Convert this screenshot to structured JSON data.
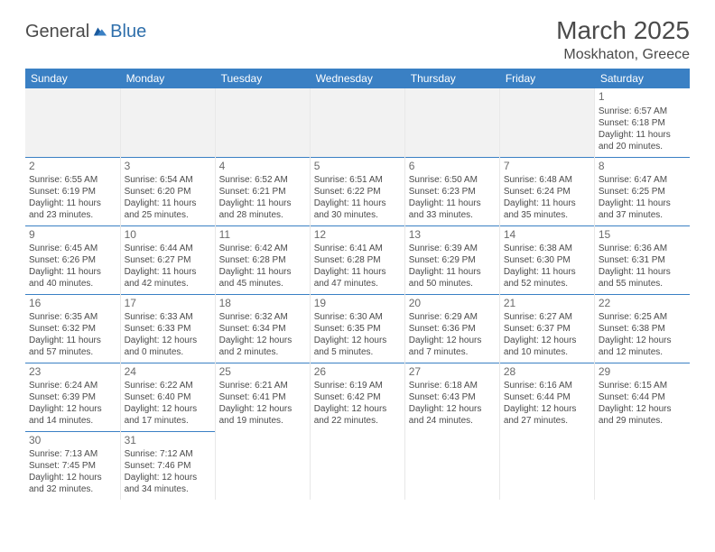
{
  "logo": {
    "part1": "General",
    "part2": "Blue"
  },
  "title": "March 2025",
  "location": "Moskhaton, Greece",
  "colors": {
    "header_bg": "#3a80c4",
    "header_text": "#ffffff",
    "border": "#3a80c4",
    "cell_border": "#e8e8e8",
    "text": "#4a4a4a",
    "daynum": "#6a6a6a",
    "empty_bg": "#f2f2f2"
  },
  "weekdays": [
    "Sunday",
    "Monday",
    "Tuesday",
    "Wednesday",
    "Thursday",
    "Friday",
    "Saturday"
  ],
  "weeks": [
    [
      null,
      null,
      null,
      null,
      null,
      null,
      {
        "d": "1",
        "sr": "Sunrise: 6:57 AM",
        "ss": "Sunset: 6:18 PM",
        "dl1": "Daylight: 11 hours",
        "dl2": "and 20 minutes."
      }
    ],
    [
      {
        "d": "2",
        "sr": "Sunrise: 6:55 AM",
        "ss": "Sunset: 6:19 PM",
        "dl1": "Daylight: 11 hours",
        "dl2": "and 23 minutes."
      },
      {
        "d": "3",
        "sr": "Sunrise: 6:54 AM",
        "ss": "Sunset: 6:20 PM",
        "dl1": "Daylight: 11 hours",
        "dl2": "and 25 minutes."
      },
      {
        "d": "4",
        "sr": "Sunrise: 6:52 AM",
        "ss": "Sunset: 6:21 PM",
        "dl1": "Daylight: 11 hours",
        "dl2": "and 28 minutes."
      },
      {
        "d": "5",
        "sr": "Sunrise: 6:51 AM",
        "ss": "Sunset: 6:22 PM",
        "dl1": "Daylight: 11 hours",
        "dl2": "and 30 minutes."
      },
      {
        "d": "6",
        "sr": "Sunrise: 6:50 AM",
        "ss": "Sunset: 6:23 PM",
        "dl1": "Daylight: 11 hours",
        "dl2": "and 33 minutes."
      },
      {
        "d": "7",
        "sr": "Sunrise: 6:48 AM",
        "ss": "Sunset: 6:24 PM",
        "dl1": "Daylight: 11 hours",
        "dl2": "and 35 minutes."
      },
      {
        "d": "8",
        "sr": "Sunrise: 6:47 AM",
        "ss": "Sunset: 6:25 PM",
        "dl1": "Daylight: 11 hours",
        "dl2": "and 37 minutes."
      }
    ],
    [
      {
        "d": "9",
        "sr": "Sunrise: 6:45 AM",
        "ss": "Sunset: 6:26 PM",
        "dl1": "Daylight: 11 hours",
        "dl2": "and 40 minutes."
      },
      {
        "d": "10",
        "sr": "Sunrise: 6:44 AM",
        "ss": "Sunset: 6:27 PM",
        "dl1": "Daylight: 11 hours",
        "dl2": "and 42 minutes."
      },
      {
        "d": "11",
        "sr": "Sunrise: 6:42 AM",
        "ss": "Sunset: 6:28 PM",
        "dl1": "Daylight: 11 hours",
        "dl2": "and 45 minutes."
      },
      {
        "d": "12",
        "sr": "Sunrise: 6:41 AM",
        "ss": "Sunset: 6:28 PM",
        "dl1": "Daylight: 11 hours",
        "dl2": "and 47 minutes."
      },
      {
        "d": "13",
        "sr": "Sunrise: 6:39 AM",
        "ss": "Sunset: 6:29 PM",
        "dl1": "Daylight: 11 hours",
        "dl2": "and 50 minutes."
      },
      {
        "d": "14",
        "sr": "Sunrise: 6:38 AM",
        "ss": "Sunset: 6:30 PM",
        "dl1": "Daylight: 11 hours",
        "dl2": "and 52 minutes."
      },
      {
        "d": "15",
        "sr": "Sunrise: 6:36 AM",
        "ss": "Sunset: 6:31 PM",
        "dl1": "Daylight: 11 hours",
        "dl2": "and 55 minutes."
      }
    ],
    [
      {
        "d": "16",
        "sr": "Sunrise: 6:35 AM",
        "ss": "Sunset: 6:32 PM",
        "dl1": "Daylight: 11 hours",
        "dl2": "and 57 minutes."
      },
      {
        "d": "17",
        "sr": "Sunrise: 6:33 AM",
        "ss": "Sunset: 6:33 PM",
        "dl1": "Daylight: 12 hours",
        "dl2": "and 0 minutes."
      },
      {
        "d": "18",
        "sr": "Sunrise: 6:32 AM",
        "ss": "Sunset: 6:34 PM",
        "dl1": "Daylight: 12 hours",
        "dl2": "and 2 minutes."
      },
      {
        "d": "19",
        "sr": "Sunrise: 6:30 AM",
        "ss": "Sunset: 6:35 PM",
        "dl1": "Daylight: 12 hours",
        "dl2": "and 5 minutes."
      },
      {
        "d": "20",
        "sr": "Sunrise: 6:29 AM",
        "ss": "Sunset: 6:36 PM",
        "dl1": "Daylight: 12 hours",
        "dl2": "and 7 minutes."
      },
      {
        "d": "21",
        "sr": "Sunrise: 6:27 AM",
        "ss": "Sunset: 6:37 PM",
        "dl1": "Daylight: 12 hours",
        "dl2": "and 10 minutes."
      },
      {
        "d": "22",
        "sr": "Sunrise: 6:25 AM",
        "ss": "Sunset: 6:38 PM",
        "dl1": "Daylight: 12 hours",
        "dl2": "and 12 minutes."
      }
    ],
    [
      {
        "d": "23",
        "sr": "Sunrise: 6:24 AM",
        "ss": "Sunset: 6:39 PM",
        "dl1": "Daylight: 12 hours",
        "dl2": "and 14 minutes."
      },
      {
        "d": "24",
        "sr": "Sunrise: 6:22 AM",
        "ss": "Sunset: 6:40 PM",
        "dl1": "Daylight: 12 hours",
        "dl2": "and 17 minutes."
      },
      {
        "d": "25",
        "sr": "Sunrise: 6:21 AM",
        "ss": "Sunset: 6:41 PM",
        "dl1": "Daylight: 12 hours",
        "dl2": "and 19 minutes."
      },
      {
        "d": "26",
        "sr": "Sunrise: 6:19 AM",
        "ss": "Sunset: 6:42 PM",
        "dl1": "Daylight: 12 hours",
        "dl2": "and 22 minutes."
      },
      {
        "d": "27",
        "sr": "Sunrise: 6:18 AM",
        "ss": "Sunset: 6:43 PM",
        "dl1": "Daylight: 12 hours",
        "dl2": "and 24 minutes."
      },
      {
        "d": "28",
        "sr": "Sunrise: 6:16 AM",
        "ss": "Sunset: 6:44 PM",
        "dl1": "Daylight: 12 hours",
        "dl2": "and 27 minutes."
      },
      {
        "d": "29",
        "sr": "Sunrise: 6:15 AM",
        "ss": "Sunset: 6:44 PM",
        "dl1": "Daylight: 12 hours",
        "dl2": "and 29 minutes."
      }
    ],
    [
      {
        "d": "30",
        "sr": "Sunrise: 7:13 AM",
        "ss": "Sunset: 7:45 PM",
        "dl1": "Daylight: 12 hours",
        "dl2": "and 32 minutes."
      },
      {
        "d": "31",
        "sr": "Sunrise: 7:12 AM",
        "ss": "Sunset: 7:46 PM",
        "dl1": "Daylight: 12 hours",
        "dl2": "and 34 minutes."
      },
      null,
      null,
      null,
      null,
      null
    ]
  ]
}
